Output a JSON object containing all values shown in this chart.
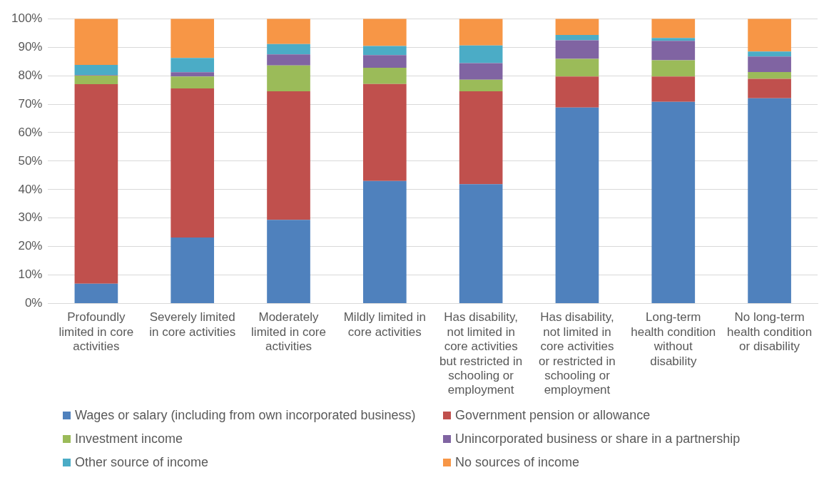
{
  "chart_data": {
    "type": "bar",
    "stacked": true,
    "grid": "y",
    "legend": "bottom",
    "categories": [
      "Profoundly limited in core activities",
      "Severely limited in core activities",
      "Moderately limited in core activities",
      "Mildly limited in core activities",
      "Has disability, not limited in core activities but restricted in schooling or employment",
      "Has disability, not limited in core activities or restricted in schooling or employment",
      "Long-term health condition without disability",
      "No long-term health condition or disability"
    ],
    "ylim": [
      0,
      100
    ],
    "yticks": [
      {
        "value": 0,
        "label": "0%"
      },
      {
        "value": 10,
        "label": "10%"
      },
      {
        "value": 20,
        "label": "20%"
      },
      {
        "value": 30,
        "label": "30%"
      },
      {
        "value": 40,
        "label": "40%"
      },
      {
        "value": 50,
        "label": "50%"
      },
      {
        "value": 60,
        "label": "60%"
      },
      {
        "value": 70,
        "label": "70%"
      },
      {
        "value": 80,
        "label": "80%"
      },
      {
        "value": 90,
        "label": "90%"
      },
      {
        "value": 100,
        "label": "100%"
      }
    ],
    "series": [
      {
        "name": "Wages or salary (including from own incorporated business)",
        "color": "#4f81bd",
        "values": [
          7,
          23.2,
          29.4,
          43,
          41.9,
          68.8,
          70.8,
          72.1
        ]
      },
      {
        "name": "Government pension or allowance",
        "color": "#c0504d",
        "values": [
          70,
          52.3,
          45.1,
          34.1,
          32.6,
          10.9,
          8.9,
          6.8
        ]
      },
      {
        "name": "Investment income",
        "color": "#9bbb59",
        "values": [
          3,
          4.2,
          9.1,
          5.7,
          4.1,
          6.2,
          5.7,
          2.4
        ]
      },
      {
        "name": "Unincorporated business or share in a partnership",
        "color": "#8064a2",
        "values": [
          0.2,
          1.5,
          3.9,
          4.4,
          5.8,
          6.5,
          6.8,
          5.4
        ]
      },
      {
        "name": "Other source of income",
        "color": "#4bacc6",
        "values": [
          3.6,
          5,
          3.6,
          3.2,
          6.2,
          1.9,
          1,
          1.8
        ]
      },
      {
        "name": "No sources of income",
        "color": "#f79646",
        "values": [
          16.2,
          13.8,
          8.9,
          9.6,
          9.4,
          5.7,
          6.8,
          11.5
        ]
      }
    ]
  }
}
